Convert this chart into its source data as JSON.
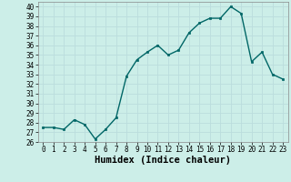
{
  "x": [
    0,
    1,
    2,
    3,
    4,
    5,
    6,
    7,
    8,
    9,
    10,
    11,
    12,
    13,
    14,
    15,
    16,
    17,
    18,
    19,
    20,
    21,
    22,
    23
  ],
  "y": [
    27.5,
    27.5,
    27.3,
    28.3,
    27.8,
    26.3,
    27.3,
    28.5,
    32.8,
    34.5,
    35.3,
    36.0,
    35.0,
    35.5,
    37.3,
    38.3,
    38.8,
    38.8,
    40.0,
    39.3,
    34.3,
    35.3,
    33.0,
    32.5
  ],
  "line_color": "#006666",
  "marker": "s",
  "marker_size": 2,
  "linewidth": 1.0,
  "xlabel": "Humidex (Indice chaleur)",
  "ylim": [
    26,
    40.5
  ],
  "xlim": [
    -0.5,
    23.5
  ],
  "yticks": [
    26,
    27,
    28,
    29,
    30,
    31,
    32,
    33,
    34,
    35,
    36,
    37,
    38,
    39,
    40
  ],
  "xticks": [
    0,
    1,
    2,
    3,
    4,
    5,
    6,
    7,
    8,
    9,
    10,
    11,
    12,
    13,
    14,
    15,
    16,
    17,
    18,
    19,
    20,
    21,
    22,
    23
  ],
  "bg_color": "#cceee8",
  "grid_color": "#bbdddd",
  "tick_fontsize": 5.5,
  "xlabel_fontsize": 7.5
}
